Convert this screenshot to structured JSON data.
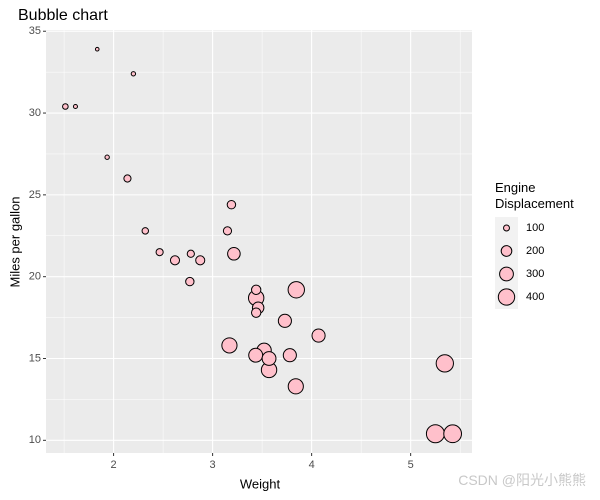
{
  "chart_data": {
    "type": "scatter",
    "title": "Bubble chart",
    "x_label": "Weight",
    "y_label": "Miles per gallon",
    "xlim": [
      1.3175,
      5.6195
    ],
    "ylim": [
      9.225,
      35.075
    ],
    "xticks": [
      2,
      3,
      4,
      5
    ],
    "yticks": [
      10,
      15,
      20,
      25,
      30,
      35
    ],
    "grid": true,
    "panel_color": "#ebebeb",
    "series": [
      {
        "color": "#ffc0cb",
        "edge_color": "#000000",
        "x": [
          2.62,
          2.875,
          2.32,
          3.215,
          3.44,
          3.46,
          3.57,
          3.19,
          3.15,
          3.44,
          3.44,
          4.07,
          3.73,
          3.78,
          5.25,
          5.424,
          5.345,
          2.2,
          1.615,
          1.835,
          2.465,
          3.52,
          3.435,
          3.84,
          3.845,
          1.935,
          2.14,
          1.513,
          3.17,
          2.77,
          3.57,
          2.78
        ],
        "values": [
          21.0,
          21.0,
          22.8,
          21.4,
          18.7,
          18.1,
          14.3,
          24.4,
          22.8,
          19.2,
          17.8,
          16.4,
          17.3,
          15.2,
          10.4,
          10.4,
          14.7,
          32.4,
          30.4,
          33.9,
          21.5,
          15.5,
          15.2,
          13.3,
          19.2,
          27.3,
          26.0,
          30.4,
          15.8,
          19.7,
          15.0,
          21.4
        ],
        "sizes": [
          160,
          160,
          108,
          258,
          360,
          225,
          360,
          146.7,
          140.8,
          167.6,
          167.6,
          275.8,
          275.8,
          275.8,
          472,
          460,
          440,
          78.7,
          75.7,
          71.1,
          120.1,
          318,
          304,
          350,
          400,
          79,
          120.3,
          95.1,
          351,
          145,
          301,
          121
        ]
      }
    ],
    "size_legend": {
      "title": "Engine\nDisplacement",
      "values": [
        100,
        200,
        300,
        400
      ]
    }
  },
  "watermark": "CSDN @阳光小熊熊"
}
